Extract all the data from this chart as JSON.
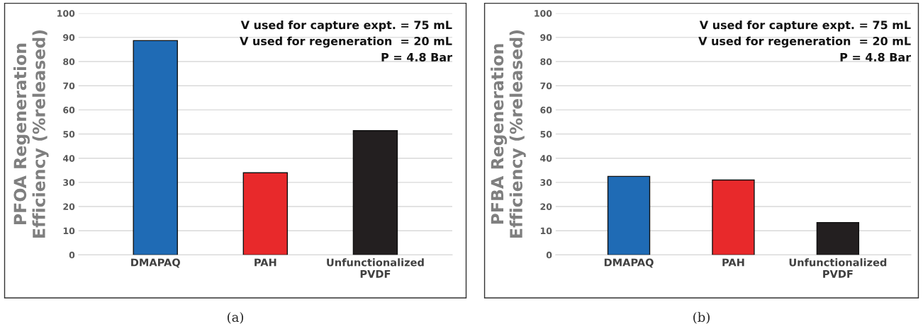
{
  "chart_data": [
    {
      "type": "bar",
      "ylabel": "PFOA Regeneration\nEfficiency (%released)",
      "categories": [
        "DMAPAQ",
        "PAH",
        "Unfunctionalized\nPVDF"
      ],
      "values": [
        88.7,
        34,
        51.4
      ],
      "colors": [
        "#1f6bb5",
        "#e8292b",
        "#231f20"
      ],
      "ylim": [
        0,
        100
      ],
      "yticks": [
        0,
        10,
        20,
        30,
        40,
        50,
        60,
        70,
        80,
        90,
        100
      ],
      "grid": "y",
      "annotations": [
        "V used for capture expt. = 75 mL\nV used for regeneration  = 20 mL\nP = 4.8 Bar",
        "(a)"
      ]
    },
    {
      "type": "bar",
      "ylabel": "PFBA Regeneration\nEfficiency (%released)",
      "categories": [
        "DMAPAQ",
        "PAH",
        "Unfunctionalized\nPVDF"
      ],
      "values": [
        32.5,
        31,
        13.4
      ],
      "colors": [
        "#1f6bb5",
        "#e8292b",
        "#231f20"
      ],
      "ylim": [
        0,
        100
      ],
      "yticks": [
        0,
        10,
        20,
        30,
        40,
        50,
        60,
        70,
        80,
        90,
        100
      ],
      "grid": "y",
      "annotations": [
        "V used for capture expt. = 75 mL\nV used for regeneration  = 20 mL\nP = 4.8 Bar",
        "(b)"
      ]
    }
  ]
}
